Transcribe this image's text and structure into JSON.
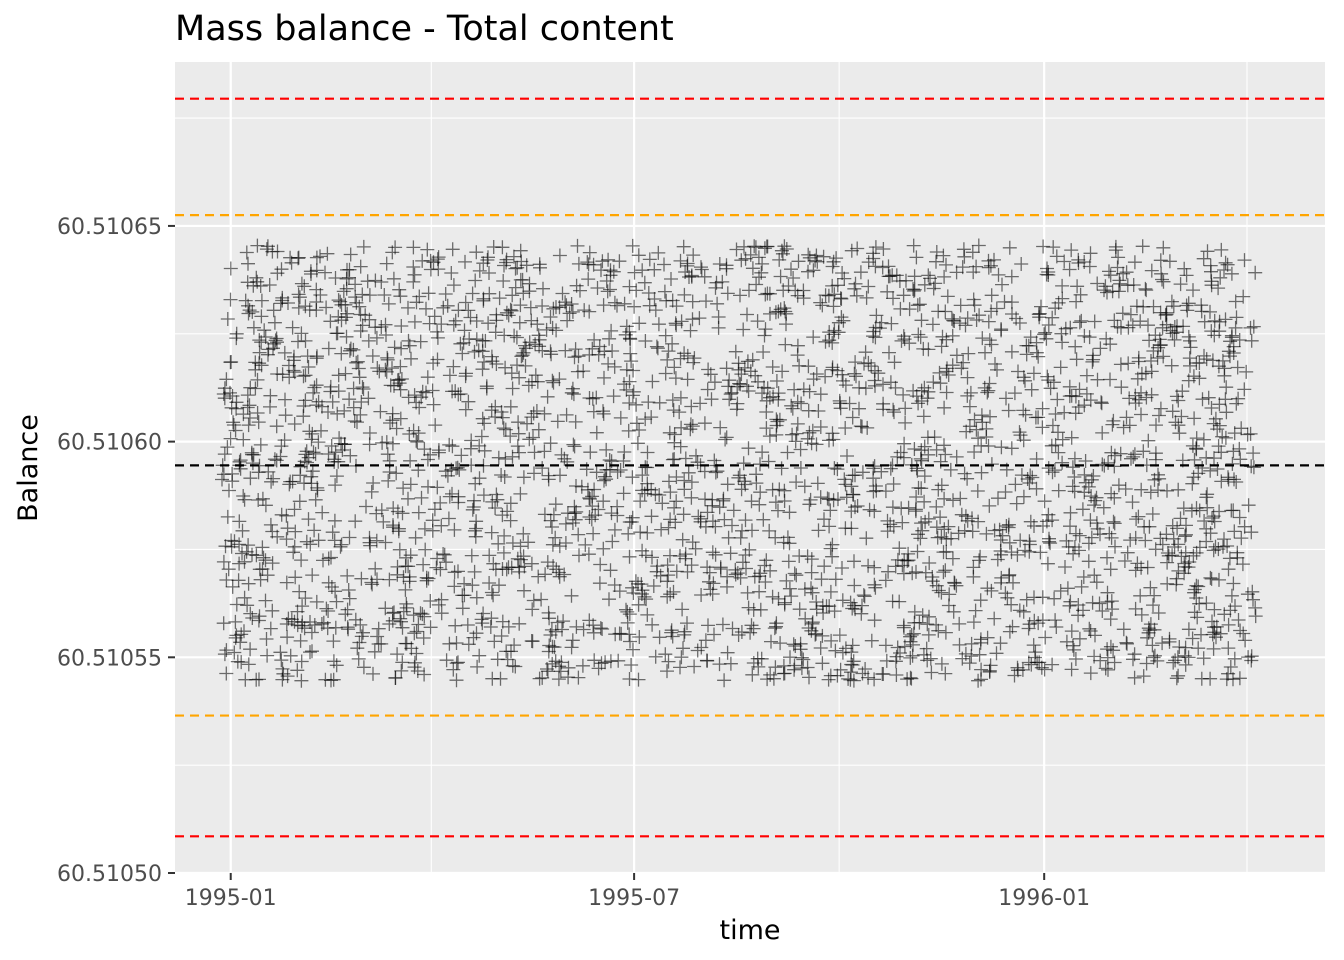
{
  "chart_data": {
    "type": "scatter",
    "title": "Mass balance - Total content",
    "xlabel": "time",
    "ylabel": "Balance",
    "x_axis": {
      "type": "date",
      "range": [
        "1994-12-07",
        "1996-05-06"
      ],
      "ticks": [
        {
          "date": "1995-01-01",
          "label": "1995-01"
        },
        {
          "date": "1995-07-01",
          "label": "1995-07"
        },
        {
          "date": "1996-01-01",
          "label": "1996-01"
        }
      ],
      "minor_ticks": [
        "1995-04-01",
        "1995-10-01",
        "1996-04-01"
      ]
    },
    "y_axis": {
      "range": [
        60.5105,
        60.510688
      ],
      "ticks": [
        {
          "value": 60.5105,
          "label": "60.51050"
        },
        {
          "value": 60.51055,
          "label": "60.51055"
        },
        {
          "value": 60.5106,
          "label": "60.51060"
        },
        {
          "value": 60.51065,
          "label": "60.51065"
        }
      ],
      "minor_ticks": [
        60.510525,
        60.510575,
        60.510625,
        60.510675
      ]
    },
    "grid": true,
    "reference_lines": [
      {
        "y": 60.5106795,
        "color": "#ff0000",
        "style": "dashed"
      },
      {
        "y": 60.5106525,
        "color": "#ffa500",
        "style": "dashed"
      },
      {
        "y": 60.5105945,
        "color": "#000000",
        "style": "dashed"
      },
      {
        "y": 60.5105365,
        "color": "#ffa500",
        "style": "dashed"
      },
      {
        "y": 60.5105085,
        "color": "#ff0000",
        "style": "dashed"
      }
    ],
    "series": [
      {
        "marker": "plus",
        "color": "#000000",
        "opacity": 0.55,
        "x_start": "1994-12-28",
        "x_end": "1996-04-05",
        "y_min": 60.5105445,
        "y_max": 60.5106455,
        "point_count": 2800
      }
    ],
    "colors": {
      "panel_background": "#ebebeb",
      "grid": "#ffffff",
      "points": "#000000",
      "tick_text": "#4d4d4d"
    }
  }
}
